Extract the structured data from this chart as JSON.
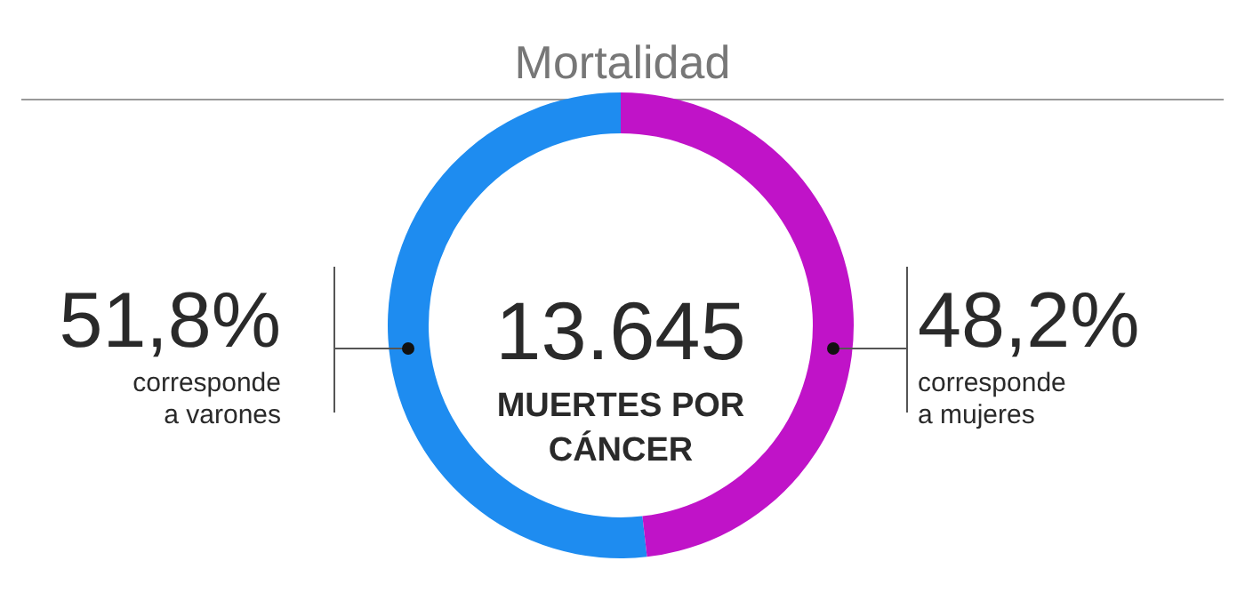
{
  "chart_data": {
    "type": "donut",
    "title": "Mortalidad",
    "categories": [
      "corresponde a varones",
      "corresponde a mujeres"
    ],
    "values": [
      51.8,
      48.2
    ],
    "colors": [
      "#1e8cf0",
      "#c013c8"
    ],
    "value_labels": [
      "51,8%",
      "48,2%"
    ],
    "annotations": [
      "13.645",
      "MUERTES POR CÁNCER"
    ]
  }
}
